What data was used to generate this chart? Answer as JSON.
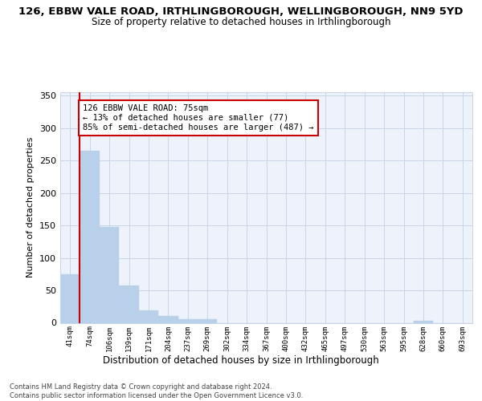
{
  "title1": "126, EBBW VALE ROAD, IRTHLINGBOROUGH, WELLINGBOROUGH, NN9 5YD",
  "title2": "Size of property relative to detached houses in Irthlingborough",
  "xlabel": "Distribution of detached houses by size in Irthlingborough",
  "ylabel": "Number of detached properties",
  "bin_labels": [
    "41sqm",
    "74sqm",
    "106sqm",
    "139sqm",
    "171sqm",
    "204sqm",
    "237sqm",
    "269sqm",
    "302sqm",
    "334sqm",
    "367sqm",
    "400sqm",
    "432sqm",
    "465sqm",
    "497sqm",
    "530sqm",
    "563sqm",
    "595sqm",
    "628sqm",
    "660sqm",
    "693sqm"
  ],
  "bar_values": [
    75,
    265,
    147,
    57,
    19,
    10,
    5,
    5,
    0,
    0,
    0,
    0,
    0,
    0,
    0,
    0,
    0,
    0,
    3,
    0,
    0
  ],
  "bar_color": "#b8d0ea",
  "bar_edge_color": "#b8d0ea",
  "grid_color": "#c8d4e8",
  "property_line_color": "#cc0000",
  "annotation_text_line1": "126 EBBW VALE ROAD: 75sqm",
  "annotation_text_line2": "← 13% of detached houses are smaller (77)",
  "annotation_text_line3": "85% of semi-detached houses are larger (487) →",
  "annotation_box_color": "#ffffff",
  "annotation_border_color": "#cc0000",
  "footnote_line1": "Contains HM Land Registry data © Crown copyright and database right 2024.",
  "footnote_line2": "Contains public sector information licensed under the Open Government Licence v3.0.",
  "ylim": [
    0,
    355
  ],
  "yticks": [
    0,
    50,
    100,
    150,
    200,
    250,
    300,
    350
  ],
  "bg_color": "#eef2fa",
  "fig_bg_color": "#ffffff"
}
